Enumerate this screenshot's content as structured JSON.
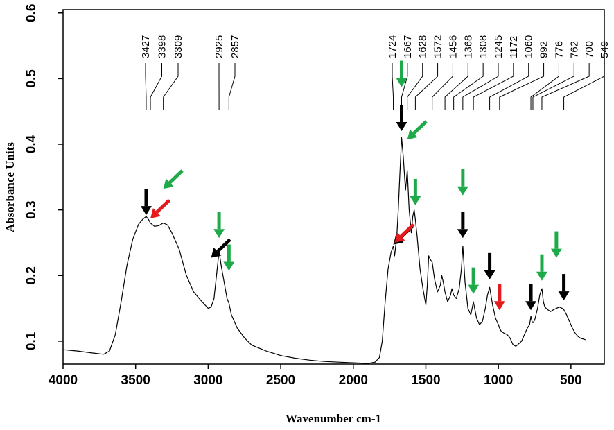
{
  "chart_data": {
    "type": "line",
    "title": "",
    "xlabel": "Wavenumber cm-1",
    "ylabel": "Absorbance Units",
    "xlim": [
      4000,
      270
    ],
    "ylim": [
      0.065,
      0.605
    ],
    "x_reversed": true,
    "grid": false,
    "legend": "none",
    "x_ticks": [
      4000,
      3500,
      3000,
      2500,
      2000,
      1500,
      1000,
      500
    ],
    "y_ticks": [
      0.1,
      0.2,
      0.3,
      0.4,
      0.5,
      0.6
    ],
    "series": [
      {
        "color": "#000000",
        "x": [
          4000,
          3900,
          3800,
          3720,
          3680,
          3640,
          3600,
          3560,
          3520,
          3480,
          3450,
          3427,
          3410,
          3398,
          3370,
          3340,
          3309,
          3280,
          3250,
          3200,
          3150,
          3100,
          3050,
          3000,
          2980,
          2960,
          2940,
          2925,
          2910,
          2890,
          2870,
          2857,
          2840,
          2800,
          2750,
          2700,
          2600,
          2500,
          2400,
          2300,
          2200,
          2100,
          2000,
          1900,
          1850,
          1820,
          1800,
          1780,
          1760,
          1740,
          1724,
          1715,
          1700,
          1690,
          1680,
          1667,
          1655,
          1640,
          1628,
          1615,
          1600,
          1590,
          1580,
          1572,
          1560,
          1540,
          1520,
          1500,
          1490,
          1480,
          1470,
          1456,
          1440,
          1420,
          1400,
          1390,
          1380,
          1368,
          1350,
          1330,
          1320,
          1308,
          1290,
          1270,
          1255,
          1245,
          1230,
          1210,
          1190,
          1172,
          1150,
          1130,
          1110,
          1090,
          1075,
          1060,
          1040,
          1020,
          1000,
          992,
          980,
          960,
          940,
          920,
          900,
          880,
          860,
          840,
          820,
          800,
          785,
          776,
          768,
          762,
          750,
          730,
          715,
          700,
          690,
          680,
          660,
          640,
          620,
          600,
          580,
          560,
          549,
          530,
          510,
          490,
          470,
          450,
          430,
          410,
          400
        ],
        "y": [
          0.087,
          0.085,
          0.082,
          0.08,
          0.085,
          0.11,
          0.16,
          0.215,
          0.255,
          0.278,
          0.286,
          0.29,
          0.285,
          0.28,
          0.275,
          0.276,
          0.28,
          0.277,
          0.265,
          0.24,
          0.2,
          0.175,
          0.162,
          0.15,
          0.152,
          0.165,
          0.205,
          0.237,
          0.215,
          0.19,
          0.165,
          0.158,
          0.14,
          0.12,
          0.105,
          0.094,
          0.085,
          0.078,
          0.074,
          0.071,
          0.069,
          0.068,
          0.067,
          0.066,
          0.068,
          0.075,
          0.1,
          0.16,
          0.21,
          0.235,
          0.245,
          0.23,
          0.26,
          0.3,
          0.35,
          0.41,
          0.38,
          0.33,
          0.36,
          0.3,
          0.265,
          0.29,
          0.3,
          0.285,
          0.26,
          0.21,
          0.18,
          0.155,
          0.185,
          0.23,
          0.225,
          0.22,
          0.195,
          0.175,
          0.185,
          0.2,
          0.19,
          0.175,
          0.16,
          0.17,
          0.18,
          0.17,
          0.165,
          0.18,
          0.21,
          0.245,
          0.19,
          0.15,
          0.14,
          0.16,
          0.135,
          0.125,
          0.13,
          0.15,
          0.17,
          0.182,
          0.155,
          0.135,
          0.125,
          0.12,
          0.115,
          0.112,
          0.11,
          0.105,
          0.095,
          0.092,
          0.096,
          0.1,
          0.11,
          0.12,
          0.125,
          0.138,
          0.13,
          0.128,
          0.132,
          0.15,
          0.17,
          0.18,
          0.16,
          0.152,
          0.148,
          0.145,
          0.148,
          0.15,
          0.152,
          0.15,
          0.148,
          0.14,
          0.13,
          0.12,
          0.112,
          0.107,
          0.104,
          0.103,
          0.102
        ]
      }
    ],
    "peak_labels": [
      {
        "text": "3427",
        "x": 3427
      },
      {
        "text": "3398",
        "x": 3398
      },
      {
        "text": "3309",
        "x": 3309
      },
      {
        "text": "2925",
        "x": 2925
      },
      {
        "text": "2857",
        "x": 2857
      },
      {
        "text": "1724",
        "x": 1724
      },
      {
        "text": "1667",
        "x": 1667
      },
      {
        "text": "1628",
        "x": 1628
      },
      {
        "text": "1572",
        "x": 1572
      },
      {
        "text": "1456",
        "x": 1456
      },
      {
        "text": "1368",
        "x": 1368
      },
      {
        "text": "1308",
        "x": 1308
      },
      {
        "text": "1245",
        "x": 1245
      },
      {
        "text": "1172",
        "x": 1172
      },
      {
        "text": "1060",
        "x": 1060
      },
      {
        "text": "992",
        "x": 992
      },
      {
        "text": "776",
        "x": 776
      },
      {
        "text": "762",
        "x": 762
      },
      {
        "text": "700",
        "x": 700
      },
      {
        "text": "549",
        "x": 549
      }
    ],
    "arrows": [
      {
        "color": "#000000",
        "x": 3427,
        "y": 0.29,
        "dir": "down"
      },
      {
        "color": "#e41a1c",
        "x": 3398,
        "y": 0.285,
        "dir": "diag"
      },
      {
        "color": "#1faa4a",
        "x": 3309,
        "y": 0.33,
        "dir": "diag"
      },
      {
        "color": "#000000",
        "x": 2980,
        "y": 0.225,
        "dir": "diag"
      },
      {
        "color": "#1faa4a",
        "x": 2925,
        "y": 0.255,
        "dir": "down"
      },
      {
        "color": "#1faa4a",
        "x": 2857,
        "y": 0.205,
        "dir": "down"
      },
      {
        "color": "#000000",
        "x": 1724,
        "y": 0.245,
        "dir": "diag"
      },
      {
        "color": "#e41a1c",
        "x": 1715,
        "y": 0.248,
        "dir": "diag"
      },
      {
        "color": "#1faa4a",
        "x": 1667,
        "y": 0.485,
        "dir": "down"
      },
      {
        "color": "#000000",
        "x": 1667,
        "y": 0.418,
        "dir": "down"
      },
      {
        "color": "#1faa4a",
        "x": 1628,
        "y": 0.405,
        "dir": "diag"
      },
      {
        "color": "#1faa4a",
        "x": 1572,
        "y": 0.305,
        "dir": "down"
      },
      {
        "color": "#1faa4a",
        "x": 1245,
        "y": 0.32,
        "dir": "down"
      },
      {
        "color": "#000000",
        "x": 1245,
        "y": 0.255,
        "dir": "down"
      },
      {
        "color": "#1faa4a",
        "x": 1172,
        "y": 0.17,
        "dir": "down"
      },
      {
        "color": "#000000",
        "x": 1060,
        "y": 0.192,
        "dir": "down"
      },
      {
        "color": "#e41a1c",
        "x": 992,
        "y": 0.145,
        "dir": "down"
      },
      {
        "color": "#000000",
        "x": 776,
        "y": 0.145,
        "dir": "down"
      },
      {
        "color": "#1faa4a",
        "x": 700,
        "y": 0.19,
        "dir": "down"
      },
      {
        "color": "#1faa4a",
        "x": 600,
        "y": 0.225,
        "dir": "down"
      },
      {
        "color": "#000000",
        "x": 549,
        "y": 0.16,
        "dir": "down"
      }
    ]
  }
}
